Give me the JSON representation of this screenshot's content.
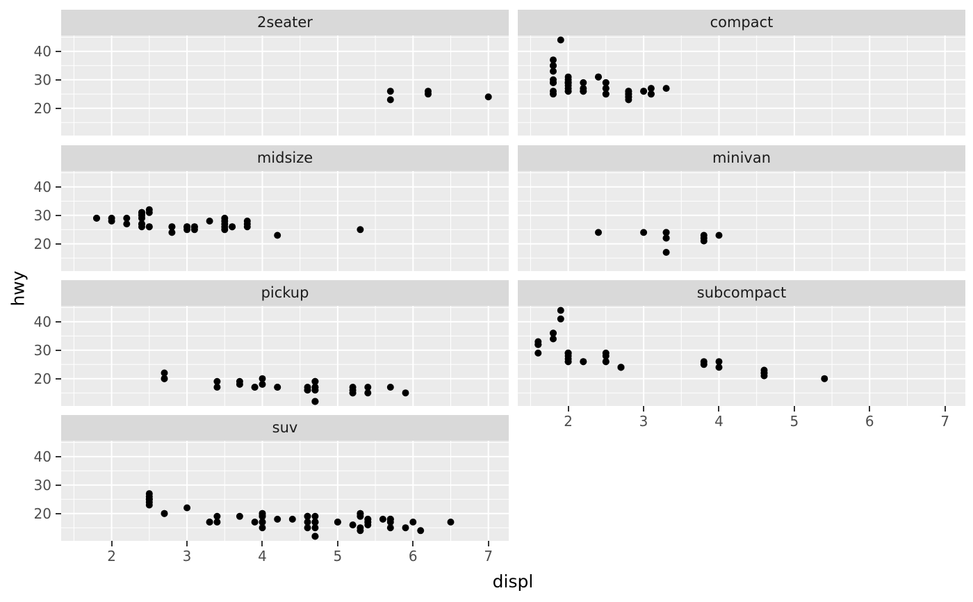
{
  "chart_data": {
    "type": "scatter",
    "title": "",
    "xlabel": "displ",
    "ylabel": "hwy",
    "facet_variable": "class",
    "layout": {
      "ncol": 2,
      "nrow": 4,
      "legend": "none",
      "grid": "on"
    },
    "x_ticks": [
      2,
      3,
      4,
      5,
      6,
      7
    ],
    "y_ticks": [
      20,
      30,
      40
    ],
    "x_minor_ticks": [
      1.5,
      2.5,
      3.5,
      4.5,
      5.5,
      6.5
    ],
    "y_minor_ticks": [
      15,
      25,
      35,
      45
    ],
    "x_domain": [
      1.33,
      7.27
    ],
    "y_domain": [
      10.4,
      45.6
    ],
    "point_color": "#000000",
    "theme": {
      "panel_background": "#ebebeb",
      "grid_color": "#ffffff",
      "strip_background": "#d9d9d9",
      "strip_text_color": "#1a1a1a",
      "tick_label_color": "#4d4d4d",
      "axis_title_color": "#000000",
      "tick_mark_color": "#333333"
    },
    "facets": [
      {
        "label": "2seater",
        "points": [
          [
            5.7,
            26
          ],
          [
            5.7,
            23
          ],
          [
            6.2,
            26
          ],
          [
            6.2,
            25
          ],
          [
            7,
            24
          ]
        ]
      },
      {
        "label": "compact",
        "points": [
          [
            1.8,
            29
          ],
          [
            1.8,
            29
          ],
          [
            2,
            31
          ],
          [
            2,
            30
          ],
          [
            2.8,
            26
          ],
          [
            2.8,
            26
          ],
          [
            3.1,
            27
          ],
          [
            1.8,
            26
          ],
          [
            1.8,
            25
          ],
          [
            2,
            28
          ],
          [
            2,
            27
          ],
          [
            2.8,
            25
          ],
          [
            2.8,
            25
          ],
          [
            3.1,
            25
          ],
          [
            3.1,
            25
          ],
          [
            2.5,
            25
          ],
          [
            2.5,
            27
          ],
          [
            2.5,
            25
          ],
          [
            2.5,
            27
          ],
          [
            2.2,
            26
          ],
          [
            2.2,
            26
          ],
          [
            1.8,
            30
          ],
          [
            1.8,
            33
          ],
          [
            1.8,
            35
          ],
          [
            1.8,
            37
          ],
          [
            1.8,
            35
          ],
          [
            2.2,
            27
          ],
          [
            2.2,
            29
          ],
          [
            2.4,
            31
          ],
          [
            2.4,
            31
          ],
          [
            3,
            26
          ],
          [
            3,
            26
          ],
          [
            3.3,
            27
          ],
          [
            2,
            29
          ],
          [
            2,
            26
          ],
          [
            2,
            29
          ],
          [
            2,
            29
          ],
          [
            2.8,
            24
          ],
          [
            1.9,
            44
          ],
          [
            2,
            29
          ],
          [
            2,
            26
          ],
          [
            2,
            29
          ],
          [
            2,
            29
          ],
          [
            2.5,
            29
          ],
          [
            2.5,
            29
          ],
          [
            2.8,
            23
          ],
          [
            2.8,
            24
          ]
        ]
      },
      {
        "label": "midsize",
        "points": [
          [
            2.8,
            24
          ],
          [
            3.1,
            25
          ],
          [
            4.2,
            23
          ],
          [
            2.4,
            27
          ],
          [
            2.4,
            30
          ],
          [
            3.1,
            26
          ],
          [
            3.5,
            29
          ],
          [
            3.6,
            26
          ],
          [
            2.4,
            26
          ],
          [
            2.4,
            27
          ],
          [
            2.4,
            30
          ],
          [
            2.4,
            31
          ],
          [
            2.5,
            26
          ],
          [
            2.5,
            26
          ],
          [
            3.3,
            28
          ],
          [
            2.4,
            29
          ],
          [
            2.4,
            27
          ],
          [
            2.5,
            31
          ],
          [
            2.5,
            32
          ],
          [
            3.5,
            27
          ],
          [
            3.5,
            26
          ],
          [
            3,
            26
          ],
          [
            3,
            25
          ],
          [
            3.5,
            25
          ],
          [
            3.1,
            26
          ],
          [
            3.8,
            26
          ],
          [
            3.8,
            27
          ],
          [
            3.8,
            28
          ],
          [
            5.3,
            25
          ],
          [
            1.8,
            29
          ],
          [
            1.8,
            29
          ],
          [
            2,
            28
          ],
          [
            2,
            29
          ],
          [
            2.8,
            26
          ],
          [
            2.8,
            26
          ],
          [
            3.6,
            26
          ],
          [
            2.2,
            29
          ],
          [
            2.2,
            27
          ],
          [
            2.4,
            31
          ],
          [
            2.4,
            31
          ],
          [
            3,
            26
          ],
          [
            3,
            26
          ],
          [
            3.5,
            28
          ]
        ]
      },
      {
        "label": "minivan",
        "points": [
          [
            2.4,
            24
          ],
          [
            3,
            24
          ],
          [
            3.3,
            22
          ],
          [
            3.3,
            22
          ],
          [
            3.3,
            24
          ],
          [
            3.3,
            24
          ],
          [
            3.3,
            17
          ],
          [
            3.8,
            22
          ],
          [
            3.8,
            21
          ],
          [
            3.8,
            23
          ],
          [
            4,
            23
          ]
        ]
      },
      {
        "label": "pickup",
        "points": [
          [
            3.7,
            19
          ],
          [
            3.7,
            18
          ],
          [
            3.9,
            17
          ],
          [
            3.9,
            17
          ],
          [
            4.7,
            19
          ],
          [
            4.7,
            19
          ],
          [
            4.7,
            12
          ],
          [
            5.2,
            17
          ],
          [
            5.2,
            15
          ],
          [
            4.7,
            16
          ],
          [
            4.7,
            12
          ],
          [
            4.7,
            17
          ],
          [
            4.7,
            17
          ],
          [
            4.7,
            16
          ],
          [
            4.7,
            12
          ],
          [
            5.2,
            15
          ],
          [
            5.2,
            16
          ],
          [
            5.7,
            17
          ],
          [
            5.9,
            15
          ],
          [
            4.2,
            17
          ],
          [
            4.2,
            17
          ],
          [
            4.6,
            16
          ],
          [
            4.6,
            16
          ],
          [
            4.6,
            17
          ],
          [
            5.4,
            15
          ],
          [
            5.4,
            17
          ],
          [
            2.7,
            20
          ],
          [
            2.7,
            20
          ],
          [
            2.7,
            22
          ],
          [
            3.4,
            17
          ],
          [
            3.4,
            19
          ],
          [
            4,
            18
          ],
          [
            4,
            20
          ]
        ]
      },
      {
        "label": "subcompact",
        "points": [
          [
            3.8,
            26
          ],
          [
            3.8,
            25
          ],
          [
            4,
            26
          ],
          [
            4,
            24
          ],
          [
            4.6,
            21
          ],
          [
            4.6,
            22
          ],
          [
            4.6,
            23
          ],
          [
            4.6,
            22
          ],
          [
            5.4,
            20
          ],
          [
            1.6,
            33
          ],
          [
            1.6,
            32
          ],
          [
            1.6,
            32
          ],
          [
            1.6,
            29
          ],
          [
            1.6,
            32
          ],
          [
            1.8,
            34
          ],
          [
            1.8,
            36
          ],
          [
            1.8,
            36
          ],
          [
            2,
            29
          ],
          [
            2,
            26
          ],
          [
            2,
            29
          ],
          [
            2,
            28
          ],
          [
            2,
            27
          ],
          [
            2.7,
            24
          ],
          [
            2.7,
            24
          ],
          [
            2.7,
            24
          ],
          [
            1.9,
            44
          ],
          [
            1.9,
            41
          ],
          [
            2,
            29
          ],
          [
            2,
            26
          ],
          [
            2.5,
            28
          ],
          [
            2.5,
            29
          ],
          [
            2.2,
            26
          ],
          [
            2.2,
            26
          ],
          [
            2.5,
            26
          ],
          [
            2.5,
            26
          ]
        ]
      },
      {
        "label": "suv",
        "points": [
          [
            5.3,
            20
          ],
          [
            5.3,
            15
          ],
          [
            5.3,
            20
          ],
          [
            5.7,
            17
          ],
          [
            6,
            17
          ],
          [
            5.3,
            19
          ],
          [
            5.3,
            14
          ],
          [
            5.7,
            15
          ],
          [
            6.5,
            17
          ],
          [
            3.9,
            17
          ],
          [
            4.7,
            17
          ],
          [
            4.7,
            12
          ],
          [
            4.7,
            17
          ],
          [
            5.2,
            16
          ],
          [
            5.7,
            18
          ],
          [
            5.9,
            15
          ],
          [
            4.6,
            17
          ],
          [
            5.4,
            17
          ],
          [
            5.4,
            18
          ],
          [
            4,
            17
          ],
          [
            4,
            19
          ],
          [
            4,
            17
          ],
          [
            4,
            19
          ],
          [
            4.6,
            19
          ],
          [
            5,
            17
          ],
          [
            3,
            22
          ],
          [
            3.7,
            19
          ],
          [
            4,
            20
          ],
          [
            4.7,
            17
          ],
          [
            4.7,
            12
          ],
          [
            4.7,
            19
          ],
          [
            5.7,
            18
          ],
          [
            6.1,
            14
          ],
          [
            4,
            15
          ],
          [
            4.2,
            18
          ],
          [
            4.4,
            18
          ],
          [
            4.6,
            15
          ],
          [
            5.4,
            17
          ],
          [
            5.4,
            16
          ],
          [
            5.4,
            18
          ],
          [
            4,
            17
          ],
          [
            4,
            19
          ],
          [
            4.6,
            19
          ],
          [
            5,
            17
          ],
          [
            3.3,
            17
          ],
          [
            3.3,
            17
          ],
          [
            4,
            20
          ],
          [
            5.6,
            18
          ],
          [
            2.5,
            25
          ],
          [
            2.5,
            24
          ],
          [
            2.5,
            27
          ],
          [
            2.5,
            25
          ],
          [
            2.5,
            26
          ],
          [
            2.5,
            23
          ],
          [
            2.7,
            20
          ],
          [
            2.7,
            20
          ],
          [
            3.4,
            19
          ],
          [
            3.4,
            17
          ],
          [
            4,
            20
          ],
          [
            4.7,
            17
          ],
          [
            4.7,
            15
          ],
          [
            5.7,
            18
          ]
        ]
      }
    ]
  }
}
